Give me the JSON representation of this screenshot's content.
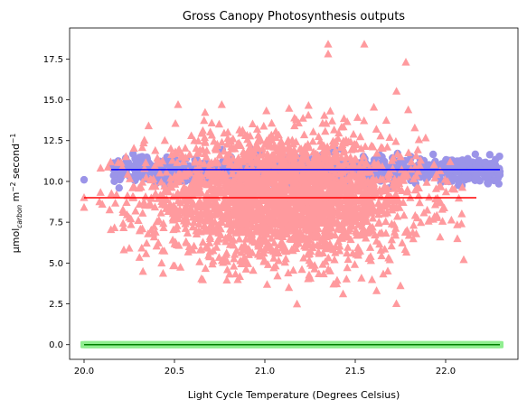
{
  "chart_data": {
    "type": "scatter",
    "title": "Gross Canopy Photosynthesis outputs",
    "xlabel": "Light Cycle Temperature (Degrees Celsius)",
    "ylabel_parts": {
      "a": "μmol",
      "b": "carbon",
      "c": " m",
      "d": "−2",
      "e": " second",
      "f": "−1"
    },
    "xlim": [
      19.92,
      22.4
    ],
    "ylim": [
      -0.9,
      19.4
    ],
    "xticks": [
      20.0,
      20.5,
      21.0,
      21.5,
      22.0
    ],
    "xtick_labels": [
      "20.0",
      "20.5",
      "21.0",
      "21.5",
      "22.0"
    ],
    "yticks": [
      0.0,
      2.5,
      5.0,
      7.5,
      10.0,
      12.5,
      15.0,
      17.5
    ],
    "ytick_labels": [
      "0.0",
      "2.5",
      "5.0",
      "7.5",
      "10.0",
      "12.5",
      "15.0",
      "17.5"
    ],
    "series": [
      {
        "marker": "square",
        "color": "#90ee90",
        "x_range": [
          20.0,
          22.3
        ],
        "y": 0.0
      },
      {
        "marker": "circle",
        "color": "#9b94e8",
        "x_range": [
          20.15,
          22.3
        ],
        "y_center": 10.7,
        "y_spread": 0.5
      },
      {
        "marker": "triangle",
        "color": "#ff9a9e",
        "x_center": 21.1,
        "x_spread": 0.38,
        "y_center": 9.0,
        "y_spread": 1.9,
        "points": [
          [
            20.0,
            9.0
          ],
          [
            20.0,
            8.4
          ],
          [
            20.52,
            14.7
          ],
          [
            21.35,
            18.4
          ],
          [
            21.55,
            18.4
          ],
          [
            21.35,
            17.8
          ],
          [
            21.78,
            17.3
          ],
          [
            20.25,
            5.9
          ],
          [
            20.22,
            5.8
          ],
          [
            21.68,
            4.5
          ],
          [
            21.07,
            4.2
          ],
          [
            22.1,
            5.2
          ],
          [
            21.38,
            3.7
          ],
          [
            21.75,
            3.6
          ],
          [
            20.48,
            12.0
          ],
          [
            20.55,
            11.2
          ]
        ]
      }
    ],
    "fit_lines": [
      {
        "color": "#008000",
        "x": [
          20.0,
          22.3
        ],
        "y": [
          0.0,
          0.0
        ]
      },
      {
        "color": "#ff0000",
        "x": [
          20.0,
          22.17
        ],
        "y": [
          9.0,
          9.0
        ]
      },
      {
        "color": "#0000ff",
        "x": [
          20.15,
          22.3
        ],
        "y": [
          10.72,
          10.72
        ]
      }
    ],
    "legend": "none",
    "grid": false
  }
}
